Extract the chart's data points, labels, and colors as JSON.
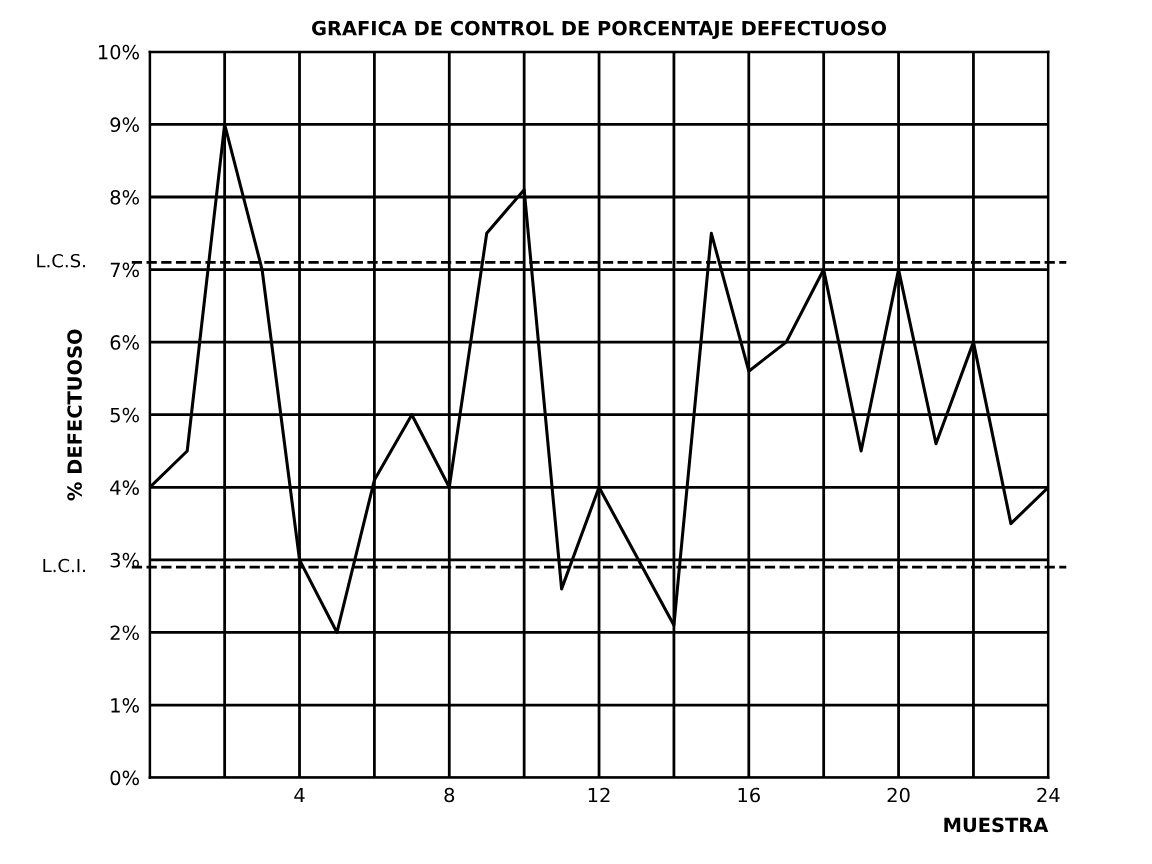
{
  "chart_data": {
    "type": "line",
    "title": "GRAFICA DE CONTROL DE PORCENTAJE DEFECTUOSO",
    "xlabel": "MUESTRA",
    "ylabel": "% DEFECTUOSO",
    "x": [
      0,
      1,
      2,
      3,
      4,
      5,
      6,
      7,
      8,
      9,
      10,
      11,
      12,
      13,
      14,
      15,
      16,
      17,
      18,
      19,
      20,
      21,
      22,
      23,
      24
    ],
    "series": [
      {
        "color": "#000000",
        "values": [
          4.0,
          4.5,
          9.0,
          7.0,
          3.0,
          2.0,
          4.1,
          5.0,
          4.0,
          7.5,
          8.1,
          2.6,
          4.0,
          3.05,
          2.1,
          7.5,
          5.6,
          6.0,
          7.0,
          4.5,
          7.0,
          4.6,
          6.0,
          3.5,
          4.0
        ]
      }
    ],
    "xlim": [
      0,
      24
    ],
    "xticks": [
      {
        "value": 0,
        "label": null
      },
      {
        "value": 2,
        "label": null
      },
      4,
      {
        "value": 6,
        "label": null
      },
      8,
      {
        "value": 10,
        "label": null
      },
      12,
      {
        "value": 14,
        "label": null
      },
      16,
      {
        "value": 18,
        "label": null
      },
      20,
      {
        "value": 22,
        "label": null
      },
      24
    ],
    "ylim": [
      0,
      10
    ],
    "yticks": [
      {
        "value": 0,
        "label": "0%"
      },
      {
        "value": 1,
        "label": "1%"
      },
      {
        "value": 2,
        "label": "2%"
      },
      {
        "value": 3,
        "label": "3%"
      },
      {
        "value": 4,
        "label": "4%"
      },
      {
        "value": 5,
        "label": "5%"
      },
      {
        "value": 6,
        "label": "6%"
      },
      {
        "value": 7,
        "label": "7%"
      },
      {
        "value": 8,
        "label": "8%"
      },
      {
        "value": 9,
        "label": "9%"
      },
      {
        "value": 10,
        "label": "10%"
      }
    ],
    "ref_lines": [
      {
        "axis": "y",
        "value": 7.1,
        "label": "L.C.S.",
        "color": "#000000",
        "line_style": "dashed"
      },
      {
        "axis": "y",
        "value": 2.9,
        "label": "L.C.I.",
        "color": "#000000",
        "line_style": "dashed"
      }
    ],
    "grid": true,
    "marker": "none",
    "line_style": "solid",
    "legend": false
  }
}
